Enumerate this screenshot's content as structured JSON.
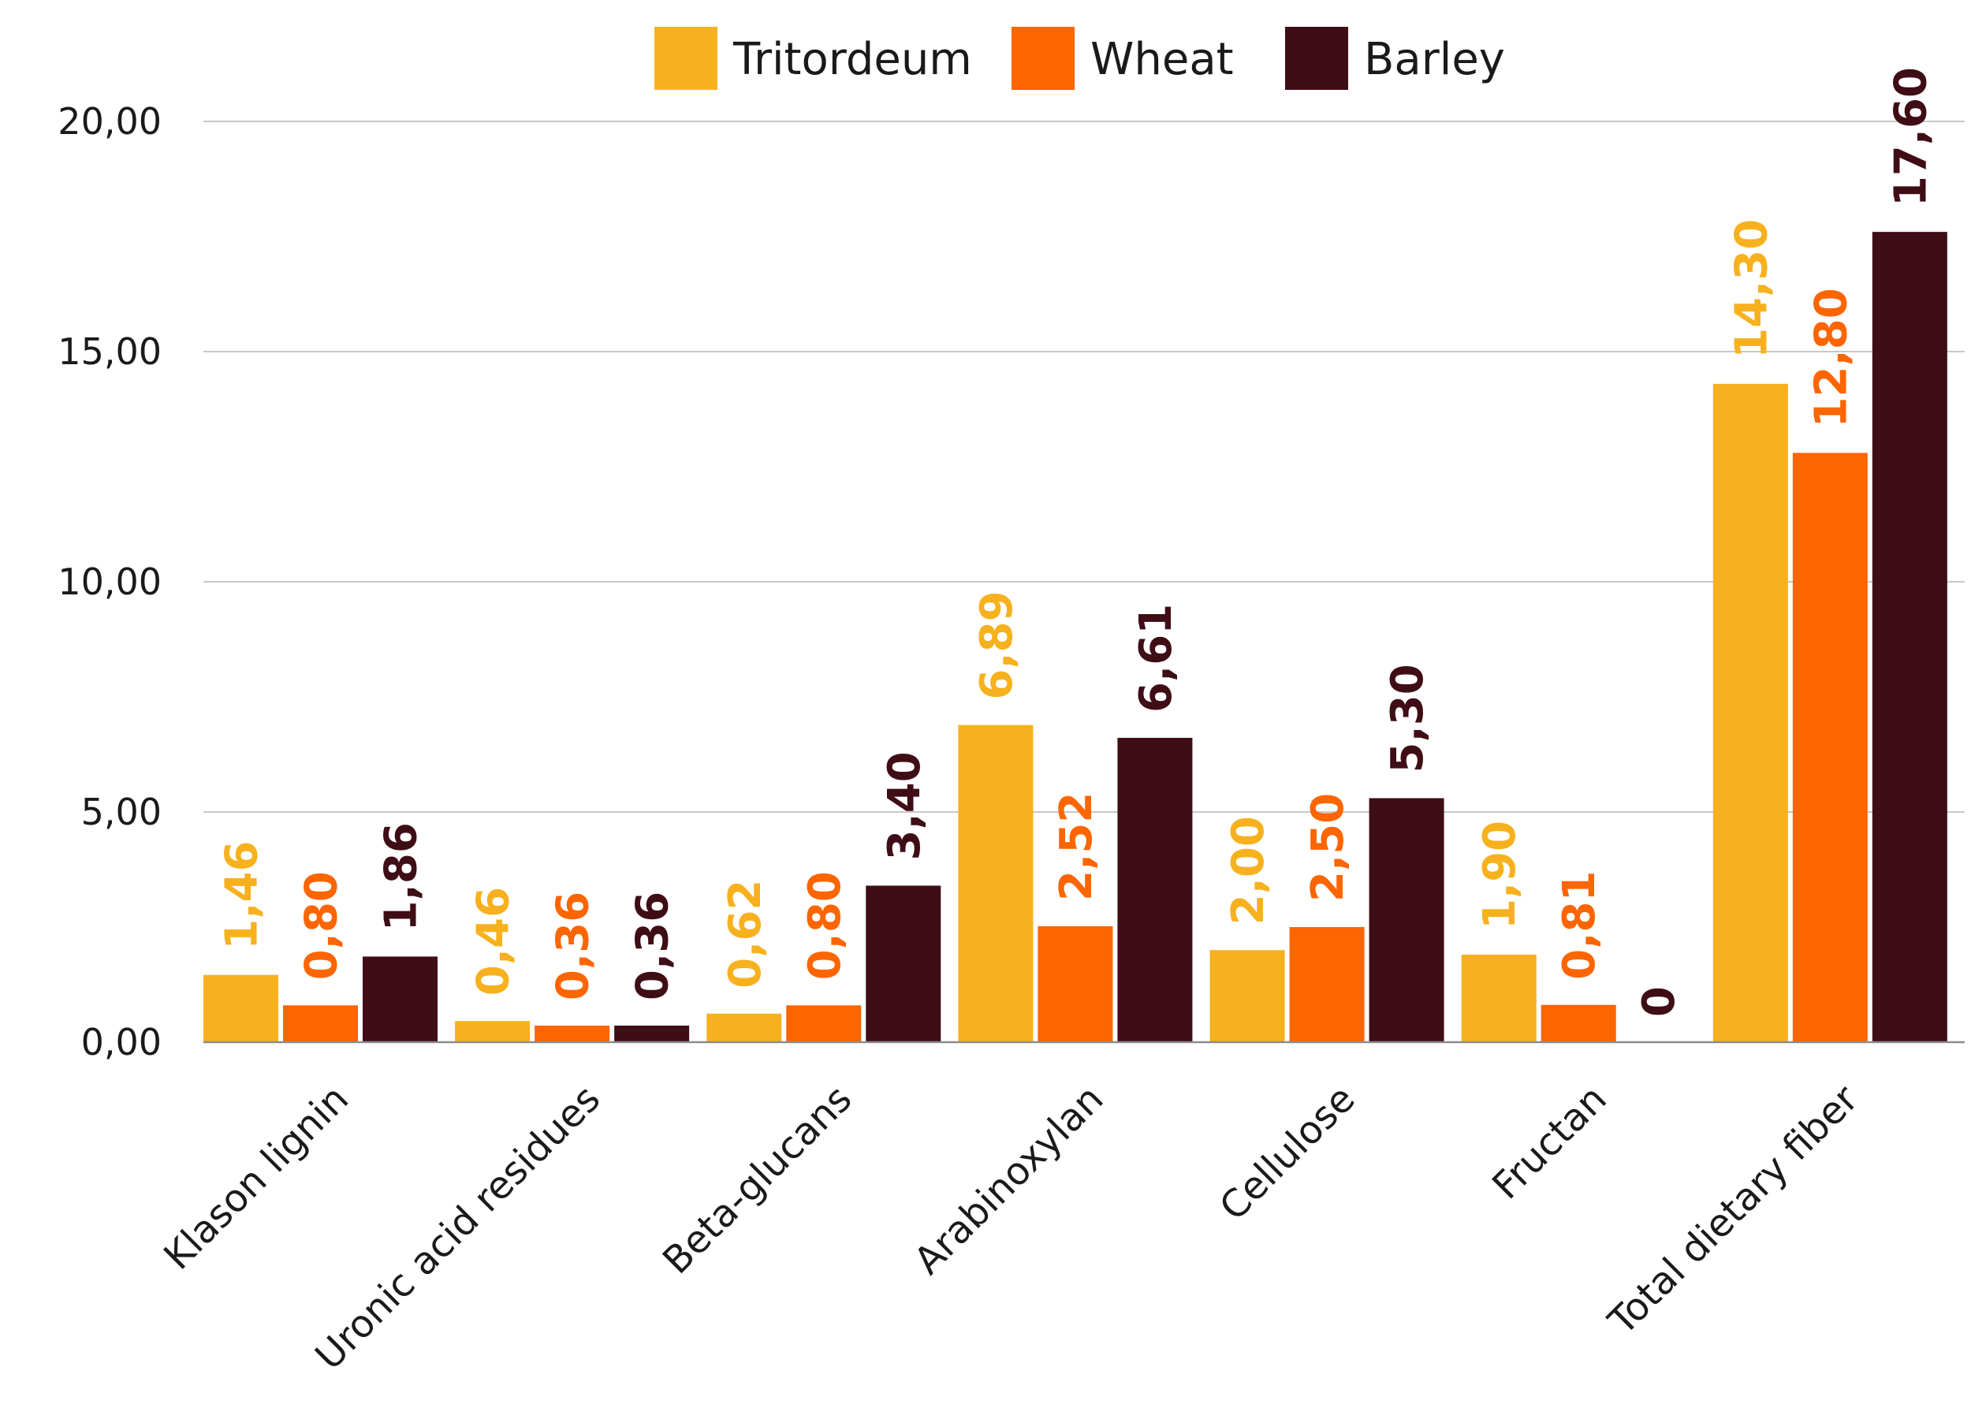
{
  "chart_data": {
    "type": "bar",
    "title": "",
    "xlabel": "",
    "ylabel": "",
    "ylim": [
      0,
      20
    ],
    "yticks": [
      0,
      5,
      10,
      15,
      20
    ],
    "ytick_labels": [
      "0,00",
      "5,00",
      "10,00",
      "15,00",
      "20,00"
    ],
    "grid": true,
    "legend_position": "top-center",
    "categories": [
      "Klason lignin",
      "Uronic acid residues",
      "Beta-glucans",
      "Arabinoxylan",
      "Cellulose",
      "Fructan",
      "Total dietary fiber"
    ],
    "series": [
      {
        "name": "Tritordeum",
        "color": "#F7B11E",
        "values": [
          1.46,
          0.46,
          0.62,
          6.89,
          2.0,
          1.9,
          14.3
        ],
        "labels": [
          "1,46",
          "0,46",
          "0,62",
          "6,89",
          "2,00",
          "1,90",
          "14,30"
        ]
      },
      {
        "name": "Wheat",
        "color": "#FC6500",
        "values": [
          0.8,
          0.36,
          0.8,
          2.52,
          2.5,
          0.81,
          12.8
        ],
        "labels": [
          "0,80",
          "0,36",
          "0,80",
          "2,52",
          "2,50",
          "0,81",
          "12,80"
        ]
      },
      {
        "name": "Barley",
        "color": "#3F0D16",
        "values": [
          1.86,
          0.36,
          3.4,
          6.61,
          5.3,
          0,
          17.6
        ],
        "labels": [
          "1,86",
          "0,36",
          "3,40",
          "6,61",
          "5,30",
          "0",
          "17,60"
        ]
      }
    ]
  }
}
